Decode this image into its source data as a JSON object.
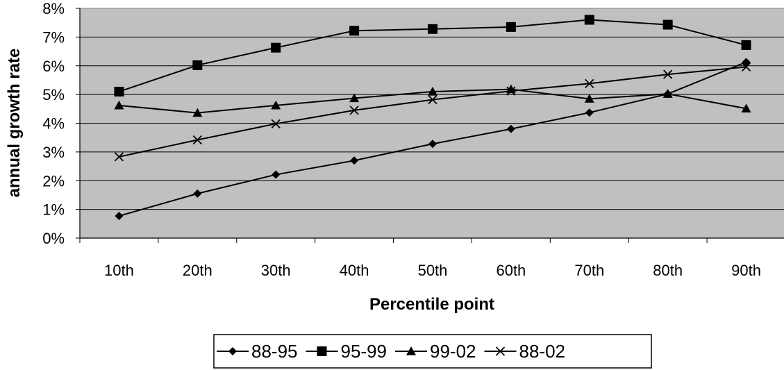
{
  "chart_data": {
    "type": "line",
    "title": "",
    "xlabel": "Percentile point",
    "ylabel": "annual growth rate",
    "categories": [
      "10th",
      "20th",
      "30th",
      "40th",
      "50th",
      "60th",
      "70th",
      "80th",
      "90th"
    ],
    "ylim": [
      0,
      0.08
    ],
    "yticks": [
      "0%",
      "1%",
      "2%",
      "3%",
      "4%",
      "5%",
      "6%",
      "7%",
      "8%"
    ],
    "grid": true,
    "legend_position": "bottom",
    "plot_background": "#c0c0c0",
    "series": [
      {
        "name": "88-95",
        "marker": "diamond",
        "values": [
          0.0077,
          0.0155,
          0.0221,
          0.027,
          0.0328,
          0.038,
          0.0437,
          0.0502,
          0.0613
        ]
      },
      {
        "name": "95-99",
        "marker": "square",
        "values": [
          0.051,
          0.0602,
          0.0663,
          0.0722,
          0.0728,
          0.0735,
          0.076,
          0.0743,
          0.0672
        ]
      },
      {
        "name": "99-02",
        "marker": "triangle",
        "values": [
          0.0462,
          0.0436,
          0.0462,
          0.0487,
          0.051,
          0.0518,
          0.0485,
          0.0502,
          0.0451
        ]
      },
      {
        "name": "88-02",
        "marker": "x",
        "values": [
          0.0283,
          0.0342,
          0.0398,
          0.0445,
          0.0482,
          0.0512,
          0.0538,
          0.057,
          0.0596
        ]
      }
    ]
  }
}
